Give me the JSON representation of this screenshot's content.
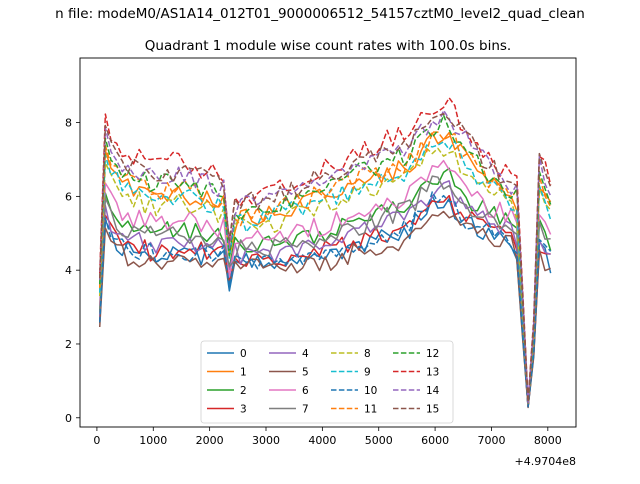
{
  "chart_data": {
    "type": "line",
    "suptitle": "n file: modeM0/AS1A14_012T01_9000006512_54157cztM0_level2_quad_clean",
    "title": "Quadrant 1 module wise count rates with 100.0s bins.",
    "xlabel": "",
    "ylabel": "",
    "x_offset_label": "+4.9704e8",
    "xlim": [
      -300,
      8500
    ],
    "ylim": [
      -0.25,
      9.75
    ],
    "xticks": [
      0,
      1000,
      2000,
      3000,
      4000,
      5000,
      6000,
      7000,
      8000
    ],
    "yticks": [
      0,
      2,
      4,
      6,
      8
    ],
    "grid": false,
    "legend": {
      "placement": "lower center",
      "columns": 4
    },
    "series": [
      {
        "name": "0",
        "color": "#1f77b4",
        "style": "solid"
      },
      {
        "name": "1",
        "color": "#ff7f0e",
        "style": "solid"
      },
      {
        "name": "2",
        "color": "#2ca02c",
        "style": "solid"
      },
      {
        "name": "3",
        "color": "#d62728",
        "style": "solid"
      },
      {
        "name": "4",
        "color": "#9467bd",
        "style": "solid"
      },
      {
        "name": "5",
        "color": "#8c564b",
        "style": "solid"
      },
      {
        "name": "6",
        "color": "#e377c2",
        "style": "solid"
      },
      {
        "name": "7",
        "color": "#7f7f7f",
        "style": "solid"
      },
      {
        "name": "8",
        "color": "#bcbd22",
        "style": "dashed"
      },
      {
        "name": "9",
        "color": "#17becf",
        "style": "dashed"
      },
      {
        "name": "10",
        "color": "#1f77b4",
        "style": "dashed"
      },
      {
        "name": "11",
        "color": "#ff7f0e",
        "style": "dashed"
      },
      {
        "name": "12",
        "color": "#2ca02c",
        "style": "dashed"
      },
      {
        "name": "13",
        "color": "#d62728",
        "style": "dashed"
      },
      {
        "name": "14",
        "color": "#9467bd",
        "style": "dashed"
      },
      {
        "name": "15",
        "color": "#8c564b",
        "style": "dashed"
      }
    ],
    "x": [
      50,
      150,
      250,
      350,
      450,
      550,
      650,
      750,
      850,
      950,
      1050,
      1150,
      1250,
      1350,
      1450,
      1550,
      1650,
      1750,
      1850,
      1950,
      2050,
      2150,
      2250,
      2350,
      2450,
      2550,
      2650,
      2750,
      2850,
      2950,
      3050,
      3150,
      3250,
      3350,
      3450,
      3550,
      3650,
      3750,
      3850,
      3950,
      4050,
      4150,
      4250,
      4350,
      4450,
      4550,
      4650,
      4750,
      4850,
      4950,
      5050,
      5150,
      5250,
      5350,
      5450,
      5550,
      5650,
      5750,
      5850,
      5950,
      6050,
      6150,
      6250,
      6350,
      6450,
      6550,
      6650,
      6750,
      6850,
      6950,
      7050,
      7150,
      7250,
      7350,
      7450,
      7550,
      7650,
      7750,
      7850,
      7950,
      8050
    ],
    "profiles": {
      "x": [
        50,
        150,
        250,
        500,
        1000,
        1500,
        2000,
        2250,
        2350,
        2450,
        3000,
        4000,
        5000,
        5500,
        6000,
        6250,
        6500,
        7000,
        7400,
        7500,
        7600,
        7700,
        7850,
        8050
      ],
      "low": [
        2.4,
        5.0,
        4.6,
        4.3,
        4.1,
        4.2,
        4.1,
        4.2,
        3.5,
        4.0,
        3.9,
        4.1,
        4.5,
        4.7,
        5.6,
        5.5,
        5.0,
        4.7,
        4.6,
        4.0,
        0.3,
        0.25,
        4.3,
        3.9
      ],
      "high": [
        4.0,
        8.4,
        7.8,
        7.3,
        7.0,
        7.1,
        6.8,
        6.6,
        5.0,
        6.0,
        6.3,
        6.9,
        7.6,
        7.9,
        8.6,
        8.8,
        8.1,
        7.1,
        6.6,
        6.8,
        0.5,
        0.4,
        7.4,
        6.7
      ]
    },
    "series_levels": [
      0.1,
      0.66,
      0.32,
      0.14,
      0.22,
      0.04,
      0.4,
      0.28,
      0.56,
      0.62,
      0.12,
      0.7,
      0.76,
      0.95,
      0.84,
      0.86
    ],
    "noise_amplitude": 0.28
  }
}
